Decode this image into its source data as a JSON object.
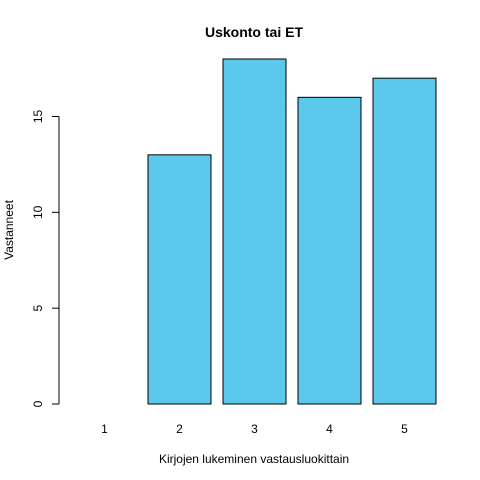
{
  "chart_data": {
    "type": "bar",
    "title": "Uskonto tai ET",
    "xlabel": "Kirjojen lukeminen vastausluokittain",
    "ylabel": "Vastanneet",
    "categories": [
      "1",
      "2",
      "3",
      "4",
      "5"
    ],
    "values": [
      0,
      13,
      18,
      16,
      17
    ],
    "yticks": [
      0,
      5,
      10,
      15
    ],
    "ylim": [
      0,
      18
    ],
    "grid": false,
    "bar_color": "#5bc8ec",
    "bar_border_color": "#000000"
  }
}
